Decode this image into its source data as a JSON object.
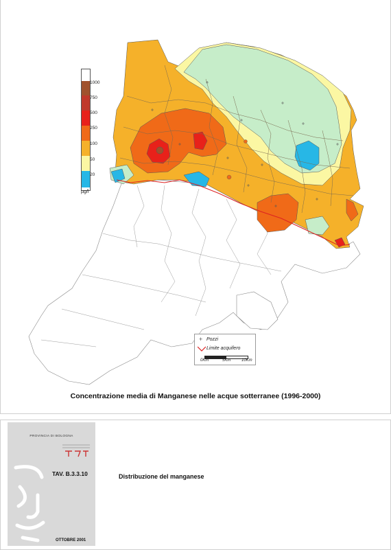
{
  "caption": "Concentrazione media di Manganese nelle acque sotterranee (1996-2000)",
  "legend": {
    "unit": "µg/l",
    "classes": [
      {
        "label": "1000",
        "color": "#a0522d"
      },
      {
        "label": "750",
        "color": "#c0392b"
      },
      {
        "label": "500",
        "color": "#e8211a"
      },
      {
        "label": "250",
        "color": "#f06a18"
      },
      {
        "label": "100",
        "color": "#f5b12a"
      },
      {
        "label": "50",
        "color": "#fbf7a3"
      },
      {
        "label": "20",
        "color": "#c6edc9"
      },
      {
        "label": "",
        "color": "#27b7e6"
      }
    ],
    "label_values": [
      "1000",
      "750",
      "500",
      "250",
      "100",
      "50",
      "20"
    ]
  },
  "key": {
    "wells_label": "Pozzi",
    "aquifer_label": "Limite acquifero",
    "scale_labels": [
      "0Km",
      "5Km",
      "10Km"
    ]
  },
  "cover": {
    "province": "PROVINCIA DI BOLOGNA",
    "table_number": "TAV.  B.3.3.10",
    "date": "OTTOBRE 2001"
  },
  "table_title": "Distribuzione del manganese",
  "colors": {
    "orange_zone": "#f5b12a",
    "dark_orange_zone": "#f06a18",
    "red_zone": "#e8211a",
    "yellow_zone": "#fbf7a3",
    "green_zone": "#c6edc9",
    "blue_zone": "#27b7e6"
  }
}
